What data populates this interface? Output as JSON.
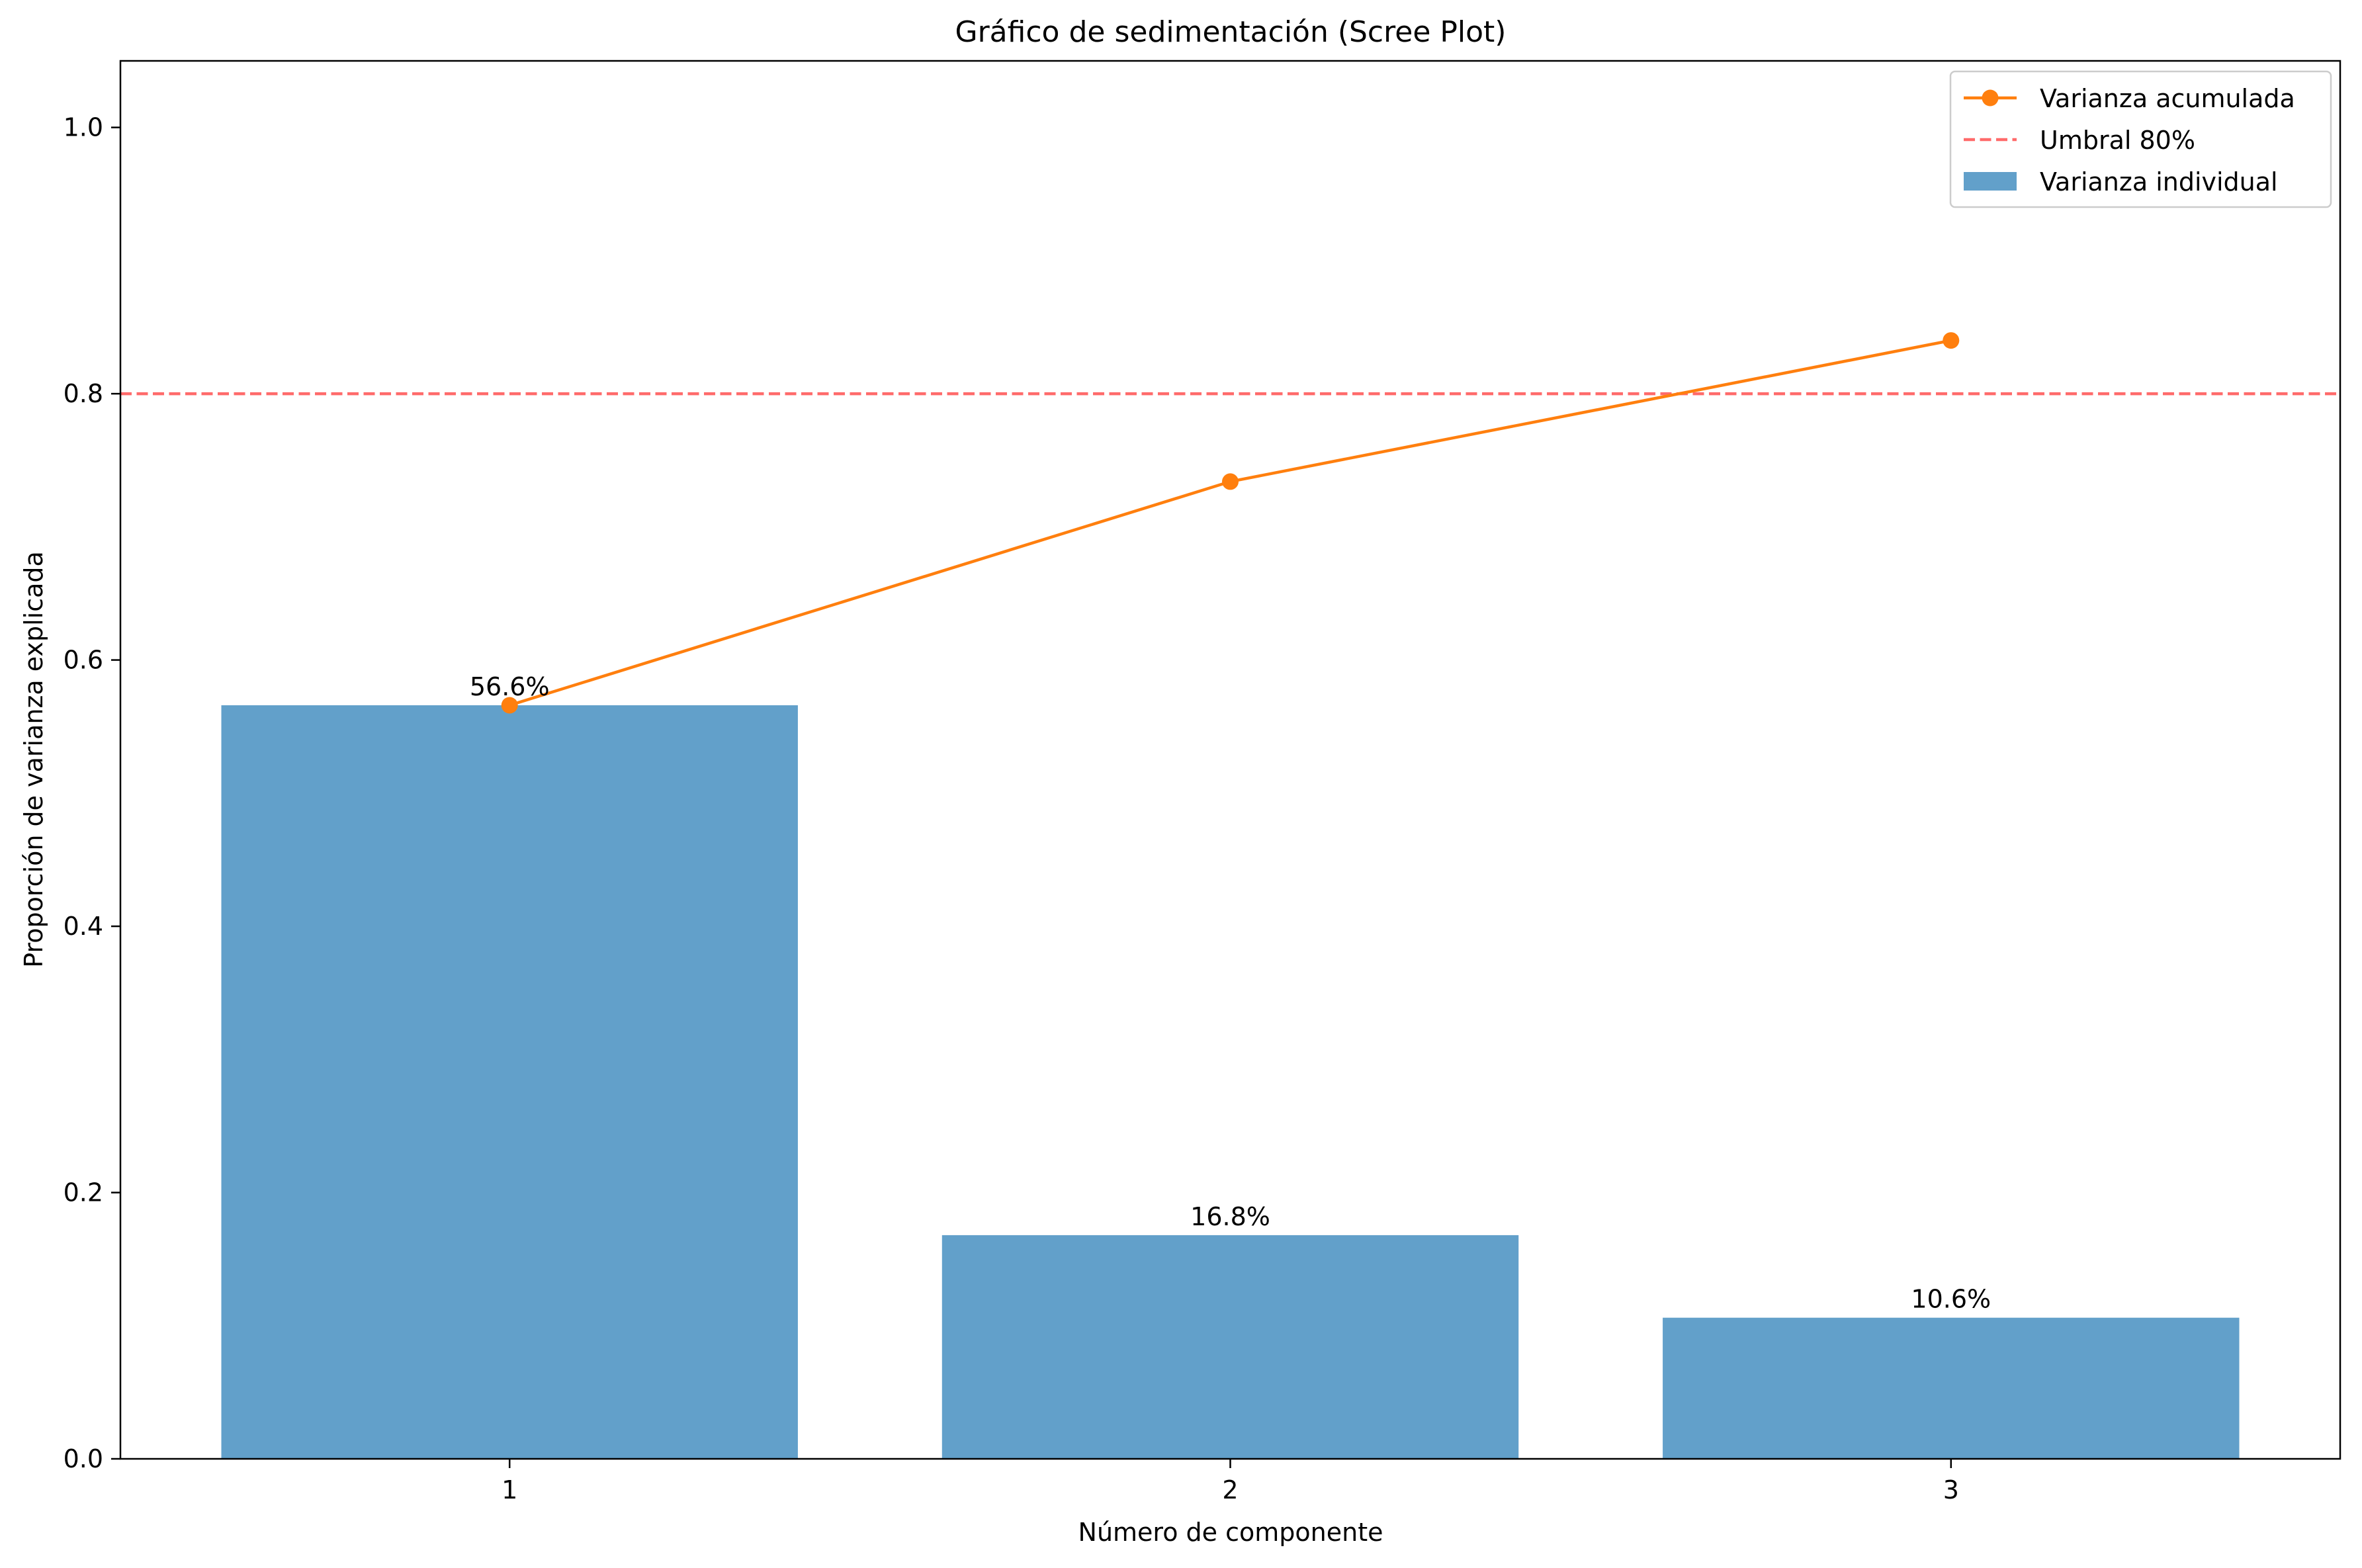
{
  "chart_data": {
    "type": "bar",
    "title": "Gráfico de sedimentación (Scree Plot)",
    "xlabel": "Número de componente",
    "ylabel": "Proporción de varianza explicada",
    "categories": [
      "1",
      "2",
      "3"
    ],
    "x": [
      1,
      2,
      3
    ],
    "xlim": [
      0.46,
      3.54
    ],
    "ylim": [
      0,
      1.05
    ],
    "yticks": [
      0.0,
      0.2,
      0.4,
      0.6,
      0.8,
      1.0
    ],
    "ytick_labels": [
      "0.0",
      "0.2",
      "0.4",
      "0.6",
      "0.8",
      "1.0"
    ],
    "grid": false,
    "legend_position": "top-right",
    "series": [
      {
        "name": "Varianza individual",
        "kind": "bar",
        "color": "#1f77b4",
        "values": [
          0.566,
          0.168,
          0.106
        ],
        "labels": [
          "56.6%",
          "16.8%",
          "10.6%"
        ]
      },
      {
        "name": "Varianza acumulada",
        "kind": "line",
        "marker": "circle",
        "color": "#ff7f0e",
        "values": [
          0.566,
          0.734,
          0.84
        ]
      }
    ],
    "reference_lines": [
      {
        "name": "Umbral 80%",
        "y": 0.8,
        "style": "dashed",
        "color": "#ff6b6b"
      }
    ]
  }
}
